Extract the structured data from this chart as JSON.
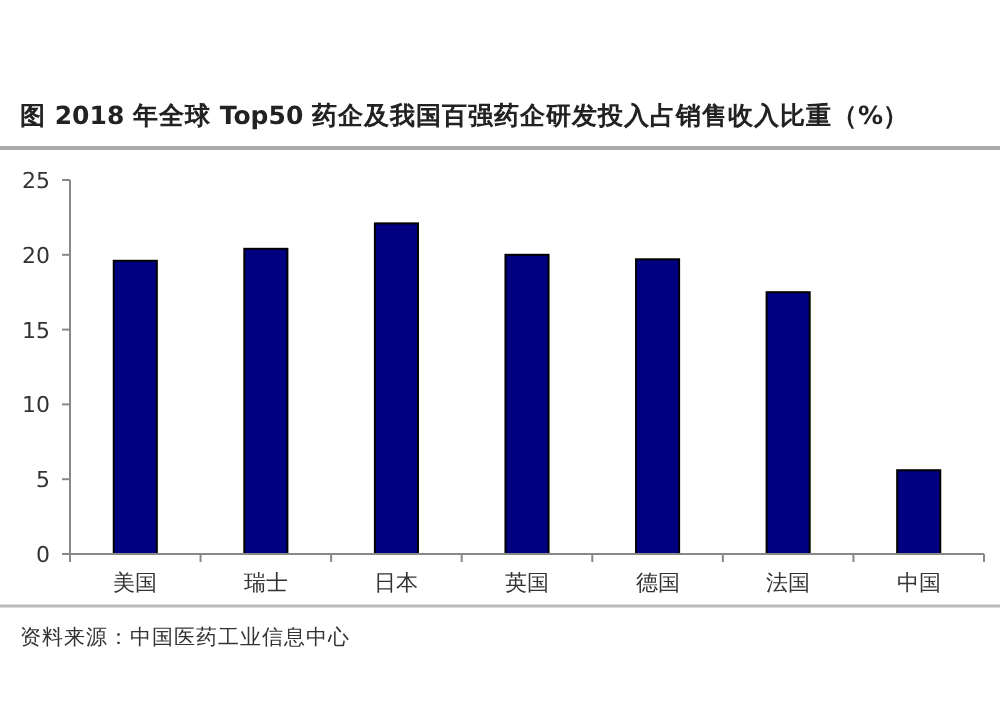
{
  "chart_data": {
    "type": "bar",
    "title": "图  2018 年全球 Top50 药企及我国百强药企研发投入占销售收入比重（%）",
    "categories": [
      "美国",
      "瑞士",
      "日本",
      "英国",
      "德国",
      "法国",
      "中国"
    ],
    "values": [
      19.6,
      20.4,
      22.1,
      20.0,
      19.7,
      17.5,
      5.6
    ],
    "color": "#000080",
    "ylim": [
      0,
      25
    ],
    "yticks": [
      0,
      5,
      10,
      15,
      20,
      25
    ],
    "grid": false,
    "annotations": [
      "资料来源：中国医药工业信息中心"
    ]
  }
}
